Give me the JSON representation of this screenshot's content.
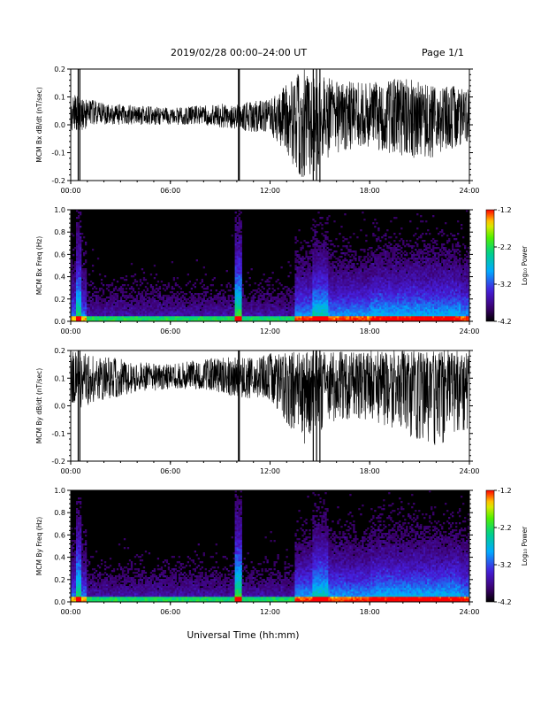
{
  "header": {
    "title": "2019/02/28  00:00–24:00 UT",
    "page": "Page 1/1"
  },
  "chart_data": [
    {
      "type": "line",
      "ylabel": "MCM Bx dB/dt (nT/sec)",
      "xlim": [
        0,
        24
      ],
      "ylim": [
        -0.2,
        0.2
      ],
      "yticks": [
        "0.2",
        "0.1",
        "0.0",
        "-0.1",
        "-0.2"
      ],
      "xticks": [
        "00:00",
        "06:00",
        "12:00",
        "18:00",
        "24:00"
      ],
      "x_hours": [
        0,
        2,
        4,
        6,
        8,
        10,
        12,
        14,
        16,
        18,
        20,
        22,
        24
      ],
      "y_mean": [
        0.04,
        0.04,
        0.035,
        0.03,
        0.035,
        0.03,
        0.03,
        0.04,
        0.04,
        0.04,
        0.04,
        0.04,
        0.04
      ],
      "y_upper": [
        0.11,
        0.08,
        0.07,
        0.06,
        0.07,
        0.08,
        0.09,
        0.2,
        0.16,
        0.15,
        0.17,
        0.15,
        0.13
      ],
      "y_lower": [
        -0.03,
        0.0,
        0.0,
        0.0,
        0.0,
        -0.02,
        -0.03,
        -0.2,
        -0.1,
        -0.08,
        -0.12,
        -0.12,
        -0.06
      ]
    },
    {
      "type": "heatmap",
      "ylabel": "MCM Bx Freq (Hz)",
      "xlim": [
        0,
        24
      ],
      "ylim": [
        0,
        1.0
      ],
      "yticks": [
        "1.0",
        "0.8",
        "0.6",
        "0.4",
        "0.2",
        "0.0"
      ],
      "xticks": [
        "00:00",
        "06:00",
        "12:00",
        "18:00",
        "24:00"
      ],
      "colorbar": {
        "label": "Log₁₀ Power",
        "range": [
          -4.2,
          -1.2
        ],
        "ticks": [
          "-1.2",
          "-2.2",
          "-3.2",
          "-4.2"
        ]
      }
    },
    {
      "type": "line",
      "ylabel": "MCM By dB/dt (nT/sec)",
      "xlim": [
        0,
        24
      ],
      "ylim": [
        -0.2,
        0.2
      ],
      "yticks": [
        "0.2",
        "0.1",
        "0.0",
        "-0.1",
        "-0.2"
      ],
      "xticks": [
        "00:00",
        "06:00",
        "12:00",
        "18:00",
        "24:00"
      ],
      "x_hours": [
        0,
        2,
        4,
        6,
        8,
        10,
        12,
        14,
        16,
        18,
        20,
        22,
        24
      ],
      "y_mean": [
        0.1,
        0.1,
        0.1,
        0.1,
        0.1,
        0.1,
        0.1,
        0.1,
        0.1,
        0.1,
        0.1,
        0.1,
        0.1
      ],
      "y_upper": [
        0.2,
        0.18,
        0.16,
        0.15,
        0.17,
        0.18,
        0.19,
        0.2,
        0.2,
        0.2,
        0.2,
        0.2,
        0.2
      ],
      "y_lower": [
        -0.02,
        0.02,
        0.05,
        0.06,
        0.06,
        0.03,
        0.02,
        -0.15,
        -0.05,
        -0.05,
        -0.1,
        -0.15,
        -0.08
      ]
    },
    {
      "type": "heatmap",
      "ylabel": "MCM By Freq (Hz)",
      "xlim": [
        0,
        24
      ],
      "ylim": [
        0,
        1.0
      ],
      "yticks": [
        "1.0",
        "0.8",
        "0.6",
        "0.4",
        "0.2",
        "0.0"
      ],
      "xticks": [
        "00:00",
        "06:00",
        "12:00",
        "18:00",
        "24:00"
      ],
      "colorbar": {
        "label": "Log₁₀ Power",
        "range": [
          -4.2,
          -1.2
        ],
        "ticks": [
          "-1.2",
          "-2.2",
          "-3.2",
          "-4.2"
        ]
      }
    }
  ],
  "xlabel": "Universal Time (hh:mm)"
}
